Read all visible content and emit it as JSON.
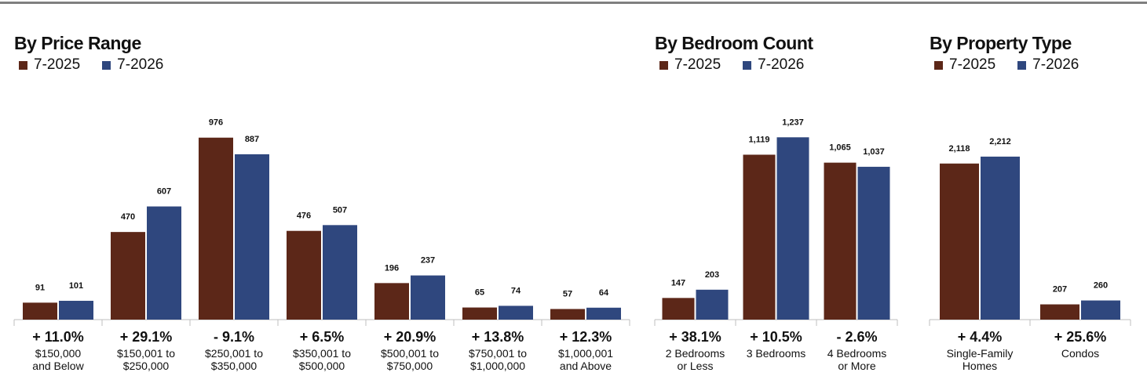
{
  "colors": {
    "series_2025": "#5c2718",
    "series_2026": "#2f477e",
    "axis": "#bfbfbf"
  },
  "chart_data": [
    {
      "type": "bar",
      "title": "By Price Range",
      "series": [
        {
          "name": "7-2025",
          "values": [
            91,
            470,
            976,
            476,
            196,
            65,
            57
          ]
        },
        {
          "name": "7-2026",
          "values": [
            101,
            607,
            887,
            507,
            237,
            74,
            64
          ]
        }
      ],
      "categories": [
        [
          "$150,000",
          "and Below"
        ],
        [
          "$150,001 to",
          "$250,000"
        ],
        [
          "$250,001 to",
          "$350,000"
        ],
        [
          "$350,001 to",
          "$500,000"
        ],
        [
          "$500,001 to",
          "$750,000"
        ],
        [
          "$750,001 to",
          "$1,000,000"
        ],
        [
          "$1,000,001",
          "and Above"
        ]
      ],
      "value_labels": [
        [
          "91",
          "470",
          "976",
          "476",
          "196",
          "65",
          "57"
        ],
        [
          "101",
          "607",
          "887",
          "507",
          "237",
          "74",
          "64"
        ]
      ],
      "changes": [
        "+ 11.0%",
        "+ 29.1%",
        "- 9.1%",
        "+ 6.5%",
        "+ 20.9%",
        "+ 13.8%",
        "+ 12.3%"
      ],
      "ylim": [
        0,
        1000
      ],
      "legend": "top-left",
      "grid": false
    },
    {
      "type": "bar",
      "title": "By Bedroom Count",
      "series": [
        {
          "name": "7-2025",
          "values": [
            147,
            1119,
            1065
          ]
        },
        {
          "name": "7-2026",
          "values": [
            203,
            1237,
            1037
          ]
        }
      ],
      "categories": [
        [
          "2 Bedrooms",
          "or Less"
        ],
        [
          "3 Bedrooms"
        ],
        [
          "4 Bedrooms",
          "or More"
        ]
      ],
      "value_labels": [
        [
          "147",
          "1,119",
          "1,065"
        ],
        [
          "203",
          "1,237",
          "1,037"
        ]
      ],
      "changes": [
        "+ 38.1%",
        "+ 10.5%",
        "- 2.6%"
      ],
      "ylim": [
        0,
        1265
      ],
      "legend": "top-left",
      "grid": false
    },
    {
      "type": "bar",
      "title": "By Property Type",
      "series": [
        {
          "name": "7-2025",
          "values": [
            2118,
            207
          ]
        },
        {
          "name": "7-2026",
          "values": [
            2212,
            260
          ]
        }
      ],
      "categories": [
        [
          "Single-Family",
          "Homes"
        ],
        [
          "Condos"
        ]
      ],
      "value_labels": [
        [
          "2,118",
          "207"
        ],
        [
          "2,212",
          "260"
        ]
      ],
      "changes": [
        "+ 4.4%",
        "+ 25.6%"
      ],
      "ylim": [
        0,
        2530
      ],
      "legend": "top-left",
      "grid": false
    }
  ]
}
